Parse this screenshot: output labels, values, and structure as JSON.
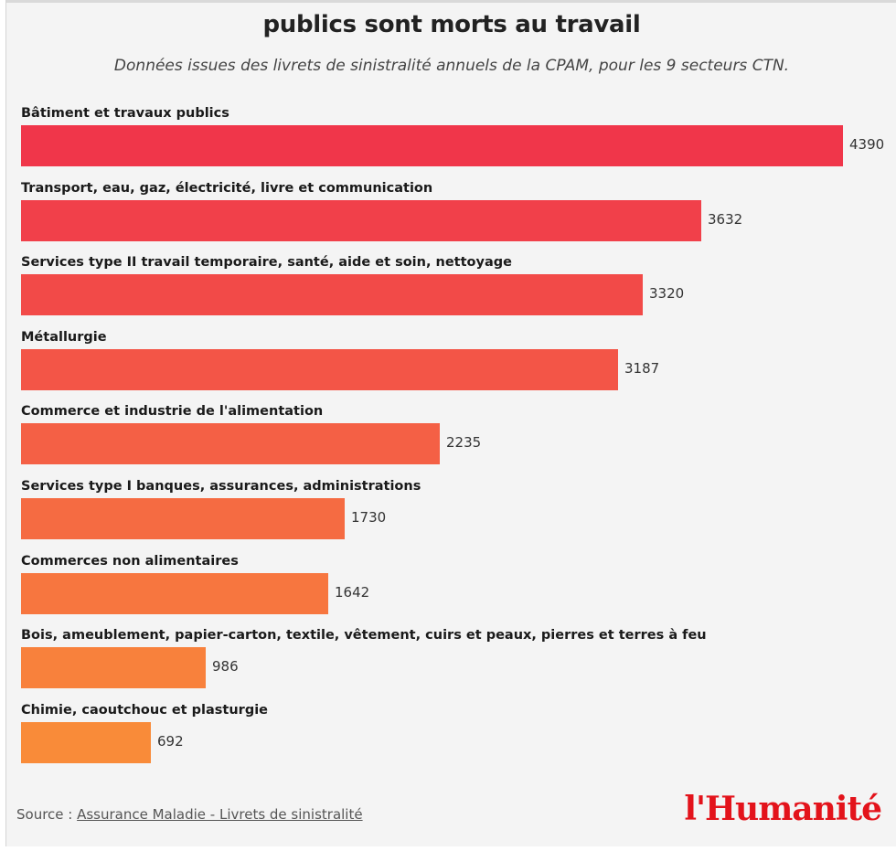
{
  "chart_data": {
    "type": "bar",
    "orientation": "horizontal",
    "title": "publics sont morts au travail",
    "subtitle": "Données issues des livrets de sinistralité annuels de la CPAM, pour les 9 secteurs CTN.",
    "categories": [
      "Bâtiment et travaux publics",
      "Transport, eau, gaz, électricité, livre et communication",
      "Services type II travail temporaire, santé, aide et soin, nettoyage",
      "Métallurgie",
      "Commerce et industrie de l'alimentation",
      "Services type I banques, assurances, administrations",
      "Commerces non alimentaires",
      "Bois, ameublement, papier-carton, textile, vêtement, cuirs et peaux, pierres et terres à feu",
      "Chimie, caoutchouc et plasturgie"
    ],
    "values": [
      4390,
      3632,
      3320,
      3187,
      2235,
      1730,
      1642,
      986,
      692
    ],
    "value_labels": [
      "4390",
      "3632",
      "3320",
      "3187",
      "2235",
      "1730",
      "1642",
      "986",
      "692"
    ],
    "colors": [
      "#f0364a",
      "#f1404a",
      "#f24a48",
      "#f35547",
      "#f46045",
      "#f56b42",
      "#f7763f",
      "#f8813c",
      "#f98b39"
    ],
    "xlim": [
      0,
      4390
    ],
    "grid": false,
    "legend": "none"
  },
  "footer": {
    "source_prefix": "Source : ",
    "source_link": "Assurance Maladie - Livrets de sinistralité",
    "logo_text": "l'Humanité"
  },
  "colors": {
    "background": "#f4f4f4",
    "logo": "#e3131b"
  }
}
